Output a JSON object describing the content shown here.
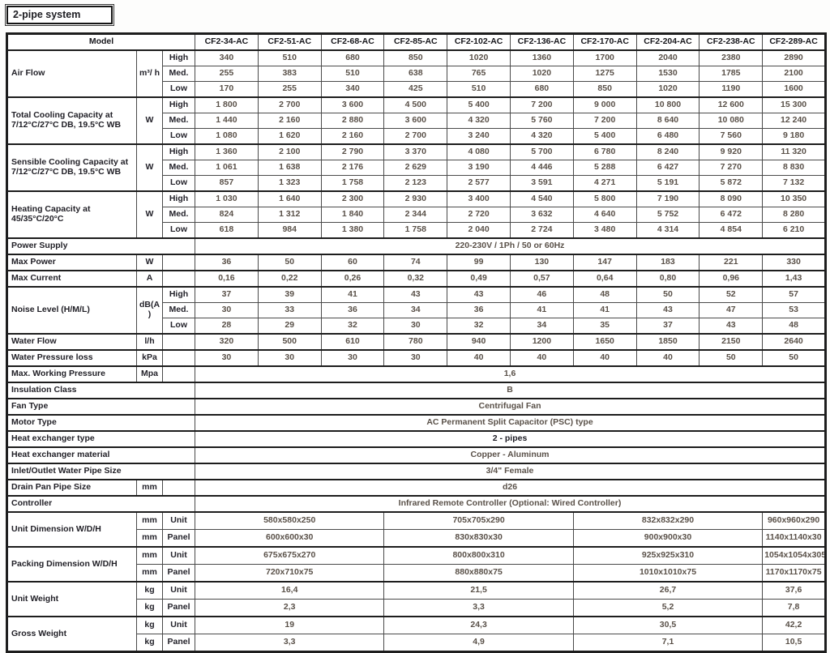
{
  "title": "2-pipe system",
  "colors": {
    "border": "#1d1d1d",
    "label_text": "#201f26",
    "value_text": "#5a5149",
    "background": "#fdfdfc"
  },
  "table": {
    "header": {
      "model_label": "Model",
      "columns": [
        "CF2-34-AC",
        "CF2-51-AC",
        "CF2-68-AC",
        "CF2-85-AC",
        "CF2-102-AC",
        "CF2-136-AC",
        "CF2-170-AC",
        "CF2-204-AC",
        "CF2-238-AC",
        "CF2-289-AC"
      ]
    },
    "group_spans": [
      3,
      3,
      3,
      1
    ],
    "rows": [
      {
        "kind": "triple",
        "label": "Air Flow",
        "unit": "m³/ h",
        "speeds": [
          "High",
          "Med.",
          "Low"
        ],
        "values": [
          [
            "340",
            "510",
            "680",
            "850",
            "1020",
            "1360",
            "1700",
            "2040",
            "2380",
            "2890"
          ],
          [
            "255",
            "383",
            "510",
            "638",
            "765",
            "1020",
            "1275",
            "1530",
            "1785",
            "2100"
          ],
          [
            "170",
            "255",
            "340",
            "425",
            "510",
            "680",
            "850",
            "1020",
            "1190",
            "1600"
          ]
        ]
      },
      {
        "kind": "triple",
        "label": "Total Cooling Capacity at 7/12°C/27°C DB, 19.5°C WB",
        "unit": "W",
        "speeds": [
          "High",
          "Med.",
          "Low"
        ],
        "values": [
          [
            "1 800",
            "2 700",
            "3 600",
            "4 500",
            "5 400",
            "7 200",
            "9 000",
            "10 800",
            "12 600",
            "15 300"
          ],
          [
            "1 440",
            "2 160",
            "2 880",
            "3 600",
            "4 320",
            "5 760",
            "7 200",
            "8 640",
            "10 080",
            "12 240"
          ],
          [
            "1 080",
            "1 620",
            "2 160",
            "2 700",
            "3 240",
            "4 320",
            "5 400",
            "6 480",
            "7 560",
            "9 180"
          ]
        ]
      },
      {
        "kind": "triple",
        "label": "Sensible Cooling Capacity at 7/12°C/27°C DB, 19.5°C WB",
        "unit": "W",
        "speeds": [
          "High",
          "Med.",
          "Low"
        ],
        "values": [
          [
            "1 360",
            "2 100",
            "2 790",
            "3 370",
            "4 080",
            "5 700",
            "6 780",
            "8 240",
            "9 920",
            "11 320"
          ],
          [
            "1 061",
            "1 638",
            "2 176",
            "2 629",
            "3 190",
            "4 446",
            "5 288",
            "6 427",
            "7 270",
            "8 830"
          ],
          [
            "857",
            "1 323",
            "1 758",
            "2 123",
            "2 577",
            "3 591",
            "4 271",
            "5 191",
            "5 872",
            "7 132"
          ]
        ]
      },
      {
        "kind": "triple",
        "label": "Heating Capacity at 45/35°C/20°C",
        "unit": "W",
        "speeds": [
          "High",
          "Med.",
          "Low"
        ],
        "values": [
          [
            "1 030",
            "1 640",
            "2 300",
            "2 930",
            "3 400",
            "4 540",
            "5 800",
            "7 190",
            "8 090",
            "10 350"
          ],
          [
            "824",
            "1 312",
            "1 840",
            "2 344",
            "2 720",
            "3 632",
            "4 640",
            "5 752",
            "6 472",
            "8 280"
          ],
          [
            "618",
            "984",
            "1 380",
            "1 758",
            "2 040",
            "2 724",
            "3 480",
            "4 314",
            "4 854",
            "6 210"
          ]
        ]
      },
      {
        "kind": "fullspan",
        "label": "Power Supply",
        "value": "220-230V / 1Ph / 50 or 60Hz"
      },
      {
        "kind": "simple",
        "label": "Max Power",
        "unit": "W",
        "values": [
          "36",
          "50",
          "60",
          "74",
          "99",
          "130",
          "147",
          "183",
          "221",
          "330"
        ]
      },
      {
        "kind": "simple",
        "label": "Max Current",
        "unit": "A",
        "values": [
          "0,16",
          "0,22",
          "0,26",
          "0,32",
          "0,49",
          "0,57",
          "0,64",
          "0,80",
          "0,96",
          "1,43"
        ]
      },
      {
        "kind": "triple",
        "label": "Noise Level  (H/M/L)",
        "unit": "dB(A )",
        "speeds": [
          "High",
          "Med.",
          "Low"
        ],
        "values": [
          [
            "37",
            "39",
            "41",
            "43",
            "43",
            "46",
            "48",
            "50",
            "52",
            "57"
          ],
          [
            "30",
            "33",
            "36",
            "34",
            "36",
            "41",
            "41",
            "43",
            "47",
            "53"
          ],
          [
            "28",
            "29",
            "32",
            "30",
            "32",
            "34",
            "35",
            "37",
            "43",
            "48"
          ]
        ]
      },
      {
        "kind": "simple",
        "label": "Water Flow",
        "unit": "l/h",
        "values": [
          "320",
          "500",
          "610",
          "780",
          "940",
          "1200",
          "1650",
          "1850",
          "2150",
          "2640"
        ]
      },
      {
        "kind": "simple",
        "label": "Water Pressure loss",
        "unit": "kPa",
        "values": [
          "30",
          "30",
          "30",
          "30",
          "40",
          "40",
          "40",
          "40",
          "50",
          "50"
        ]
      },
      {
        "kind": "unitspan",
        "label": "Max. Working Pressure",
        "unit": "Mpa",
        "value": "1,6"
      },
      {
        "kind": "fullspan",
        "label": "Insulation Class",
        "value": "B"
      },
      {
        "kind": "fullspan",
        "label": "Fan Type",
        "value": "Centrifugal Fan"
      },
      {
        "kind": "fullspan",
        "label": "Motor Type",
        "value": "AC Permanent Split Capacitor (PSC) type"
      },
      {
        "kind": "fullspan",
        "label": "Heat exchanger type",
        "value": "2 - pipes",
        "bold_value": true
      },
      {
        "kind": "fullspan",
        "label": "Heat exchanger material",
        "value": "Copper - Aluminum"
      },
      {
        "kind": "fullspan",
        "label": "Inlet/Outlet Water Pipe Size",
        "value": "3/4\" Female"
      },
      {
        "kind": "unitspan",
        "label": "Drain Pan Pipe Size",
        "unit": "mm",
        "value": "d26"
      },
      {
        "kind": "fullspan",
        "label": "Controller",
        "value": "Infrared Remote Controller (Optional: Wired Controller)"
      },
      {
        "kind": "grouped",
        "label": "Unit Dimension W/D/H",
        "subrows": [
          {
            "unit": "mm",
            "tag": "Unit",
            "values": [
              "580x580x250",
              "705x705x290",
              "832x832x290",
              "960x960x290"
            ]
          },
          {
            "unit": "mm",
            "tag": "Panel",
            "values": [
              "600x600x30",
              "830x830x30",
              "900x900x30",
              "1140x1140x30"
            ]
          }
        ]
      },
      {
        "kind": "grouped",
        "label": "Packing Dimension W/D/H",
        "subrows": [
          {
            "unit": "mm",
            "tag": "Unit",
            "values": [
              "675x675x270",
              "800x800x310",
              "925x925x310",
              "1054x1054x305"
            ]
          },
          {
            "unit": "mm",
            "tag": "Panel",
            "values": [
              "720x710x75",
              "880x880x75",
              "1010x1010x75",
              "1170x1170x75"
            ]
          }
        ]
      },
      {
        "kind": "grouped",
        "label": "Unit Weight",
        "subrows": [
          {
            "unit": "kg",
            "tag": "Unit",
            "values": [
              "16,4",
              "21,5",
              "26,7",
              "37,6"
            ]
          },
          {
            "unit": "kg",
            "tag": "Panel",
            "values": [
              "2,3",
              "3,3",
              "5,2",
              "7,8"
            ]
          }
        ]
      },
      {
        "kind": "grouped",
        "label": "Gross Weight",
        "subrows": [
          {
            "unit": "kg",
            "tag": "Unit",
            "values": [
              "19",
              "24,3",
              "30,5",
              "42,2"
            ]
          },
          {
            "unit": "kg",
            "tag": "Panel",
            "values": [
              "3,3",
              "4,9",
              "7,1",
              "10,5"
            ]
          }
        ]
      }
    ]
  }
}
